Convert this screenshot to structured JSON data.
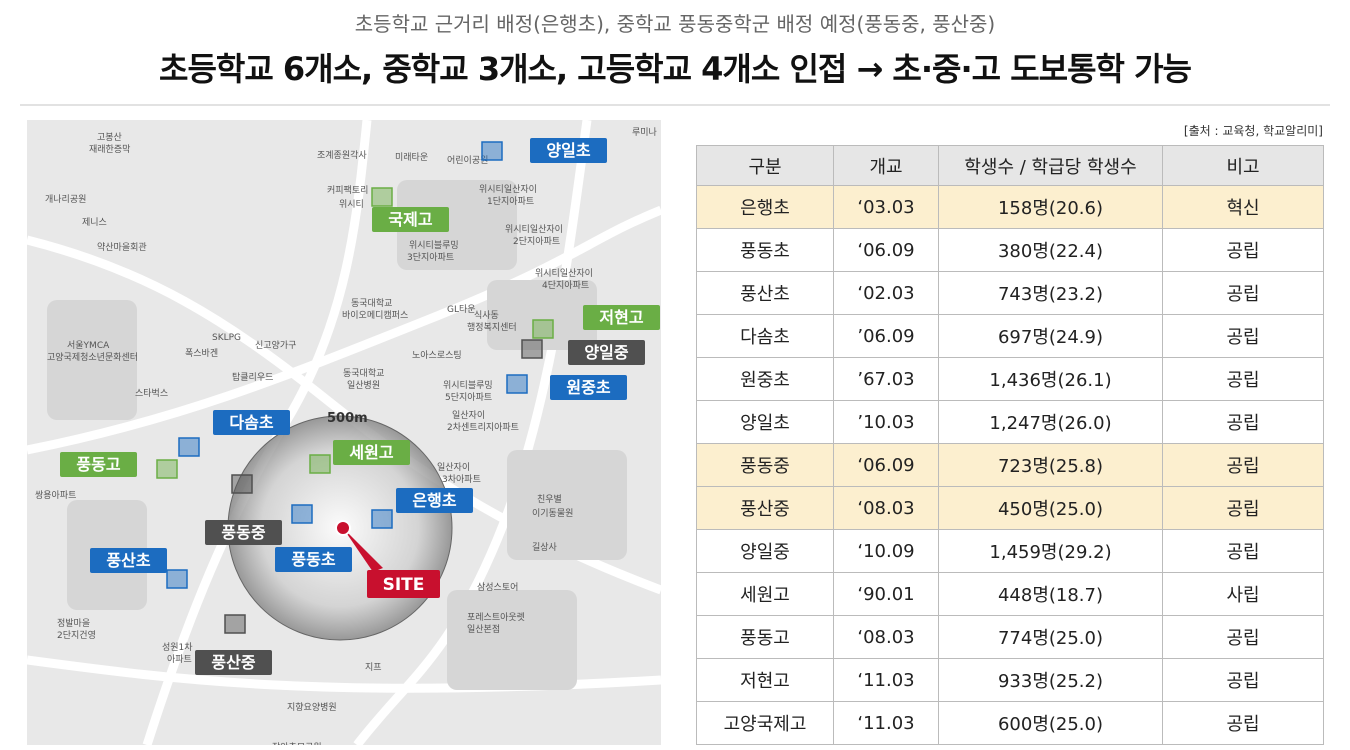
{
  "header": {
    "subtitle": "초등학교 근거리 배정(은행초), 중학교 풍동중학군 배정 예정(풍동중, 풍산중)",
    "title": "초등학교 6개소, 중학교 3개소, 고등학교 4개소 인접 → 초·중·고 도보통학 가능"
  },
  "map": {
    "radius_label": "500m",
    "site": "SITE",
    "site_color": "#c8102e",
    "schools": [
      {
        "name": "양일초",
        "color": "#1c6cc0"
      },
      {
        "name": "국제고",
        "color": "#6aae45"
      },
      {
        "name": "저현고",
        "color": "#6aae45"
      },
      {
        "name": "양일중",
        "color": "#505050"
      },
      {
        "name": "원중초",
        "color": "#1c6cc0"
      },
      {
        "name": "다솜초",
        "color": "#1c6cc0"
      },
      {
        "name": "세원고",
        "color": "#6aae45"
      },
      {
        "name": "풍동고",
        "color": "#6aae45"
      },
      {
        "name": "은행초",
        "color": "#1c6cc0"
      },
      {
        "name": "풍동중",
        "color": "#505050"
      },
      {
        "name": "풍동초",
        "color": "#1c6cc0"
      },
      {
        "name": "풍산초",
        "color": "#1c6cc0"
      },
      {
        "name": "풍산중",
        "color": "#505050"
      }
    ],
    "places": [
      "고봉산",
      "재래한증막",
      "개나리공원",
      "제니스",
      "약산마을회관",
      "조계종원각사",
      "미래타운",
      "어린이공원",
      "커피팩토리",
      "위시티",
      "위시티일산자이",
      "1단지아파트",
      "위시티일산자이",
      "2단지아파트",
      "위시티블루밍",
      "3단지아파트",
      "위시티일산자이",
      "4단지아파트",
      "동국대학교",
      "바이오메디캠퍼스",
      "GL타운",
      "식사동",
      "행정복지센터",
      "SKLPG",
      "신고양가구",
      "서울YMCA",
      "고양국제청소년문화센터",
      "폭스바겐",
      "탑클리우드",
      "노아스로스팅",
      "동국대학교",
      "일산병원",
      "위시티블루밍",
      "5단지아파트",
      "일산자이",
      "2차센트리지아파트",
      "스타벅스",
      "쌍용아파트",
      "일산자이",
      "3차아파트",
      "친우별",
      "이기동물원",
      "길상사",
      "삼성스토어",
      "포레스트아웃렛",
      "일산본점",
      "성원1차",
      "아파트",
      "정발마을",
      "2단지건영",
      "지프",
      "지향요양병원",
      "장안추모공원",
      "루미나"
    ]
  },
  "source": "[출처 : 교육청, 학교알리미]",
  "table": {
    "columns": [
      "구분",
      "개교",
      "학생수 / 학급당 학생수",
      "비고"
    ],
    "highlight_color": "#fcefcf",
    "highlighted_rows": [
      0,
      6,
      7
    ],
    "rows": [
      [
        "은행초",
        "‘03.03",
        "158명(20.6)",
        "혁신"
      ],
      [
        "풍동초",
        "‘06.09",
        "380명(22.4)",
        "공립"
      ],
      [
        "풍산초",
        "‘02.03",
        "743명(23.2)",
        "공립"
      ],
      [
        "다솜초",
        "’06.09",
        "697명(24.9)",
        "공립"
      ],
      [
        "원중초",
        "’67.03",
        "1,436명(26.1)",
        "공립"
      ],
      [
        "양일초",
        "’10.03",
        "1,247명(26.0)",
        "공립"
      ],
      [
        "풍동중",
        "‘06.09",
        "723명(25.8)",
        "공립"
      ],
      [
        "풍산중",
        "‘08.03",
        "450명(25.0)",
        "공립"
      ],
      [
        "양일중",
        "‘10.09",
        "1,459명(29.2)",
        "공립"
      ],
      [
        "세원고",
        "‘90.01",
        "448명(18.7)",
        "사립"
      ],
      [
        "풍동고",
        "‘08.03",
        "774명(25.0)",
        "공립"
      ],
      [
        "저현고",
        "‘11.03",
        "933명(25.2)",
        "공립"
      ],
      [
        "고양국제고",
        "‘11.03",
        "600명(25.0)",
        "공립"
      ]
    ]
  }
}
